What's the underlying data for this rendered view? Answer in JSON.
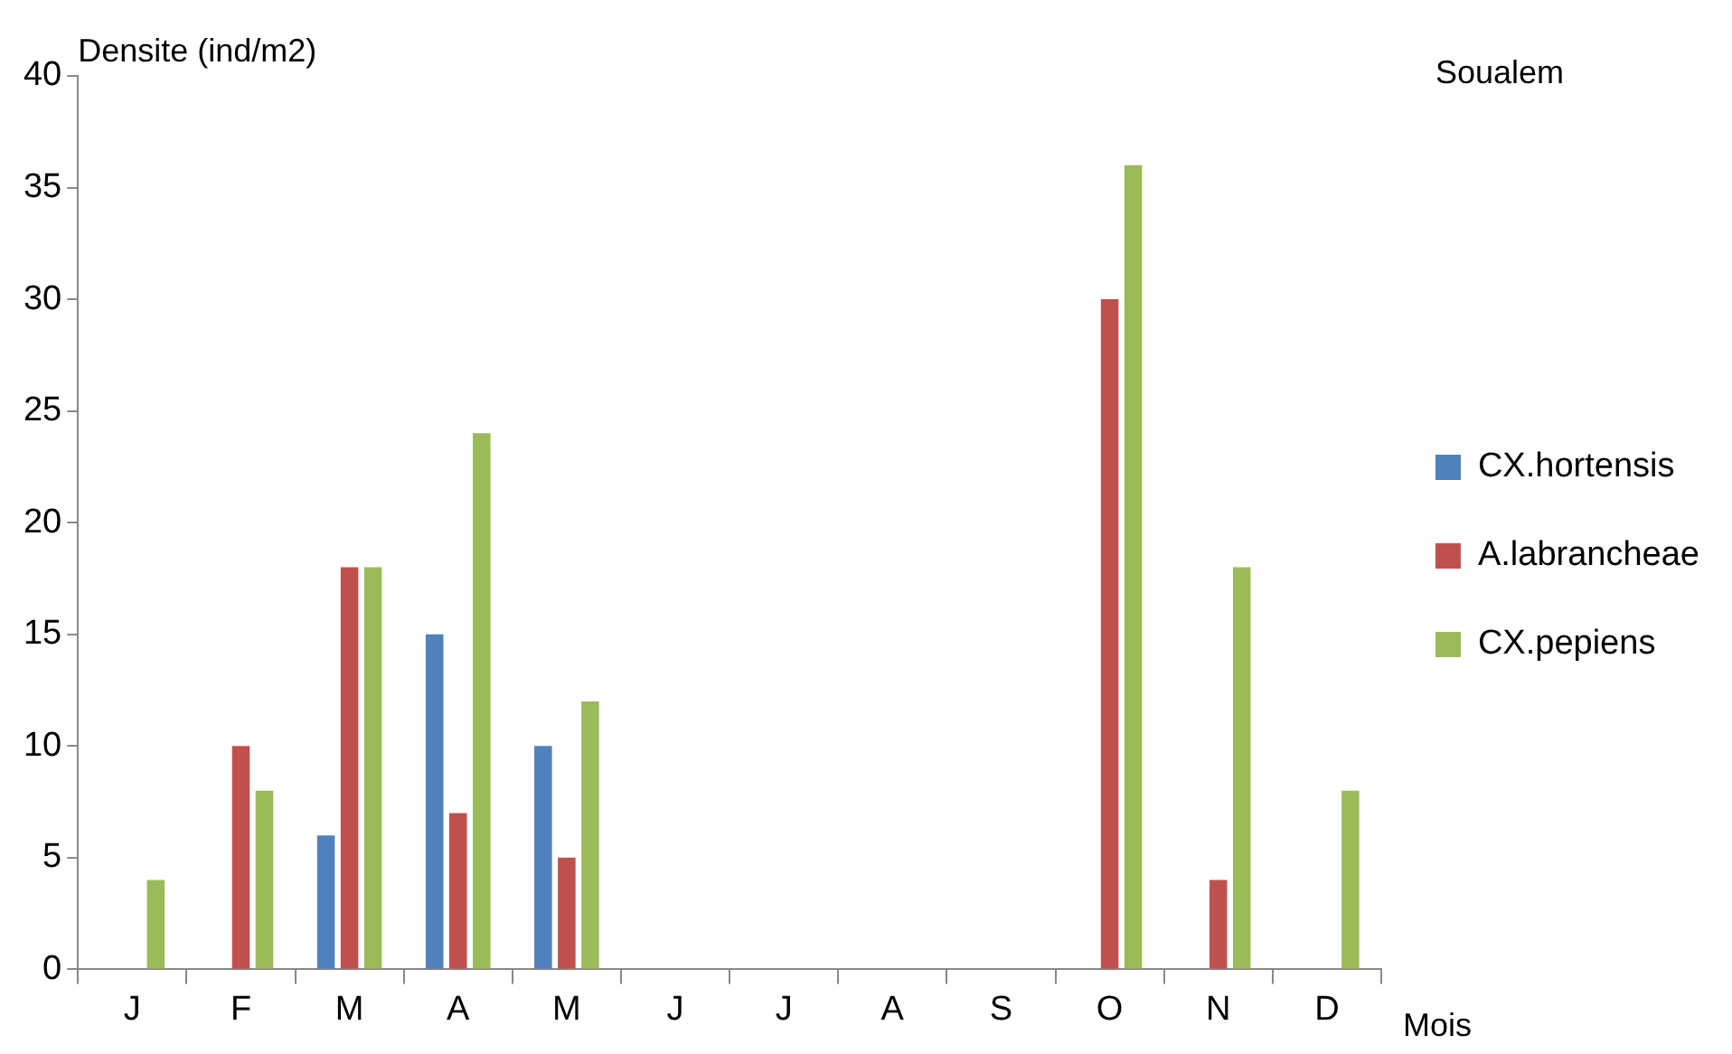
{
  "chart_data": {
    "type": "bar",
    "title": "Soualem",
    "ylabel": "Densite (ind/m2)",
    "xlabel": "Mois",
    "categories": [
      "J",
      "F",
      "M",
      "A",
      "M",
      "J",
      "J",
      "A",
      "S",
      "O",
      "N",
      "D"
    ],
    "series": [
      {
        "name": "CX.hortensis",
        "color": "#4f81bd",
        "values": [
          0,
          0,
          6,
          15,
          10,
          0,
          0,
          0,
          0,
          0,
          0,
          0
        ]
      },
      {
        "name": "A.labrancheae",
        "color": "#c0504d",
        "values": [
          0,
          10,
          18,
          7,
          5,
          0,
          0,
          0,
          0,
          30,
          4,
          0
        ]
      },
      {
        "name": "CX.pepiens",
        "color": "#9bbb59",
        "values": [
          4,
          8,
          18,
          24,
          12,
          0,
          0,
          0,
          0,
          36,
          18,
          8
        ]
      }
    ],
    "ylim": [
      0,
      40
    ],
    "yticks": [
      0,
      5,
      10,
      15,
      20,
      25,
      30,
      35,
      40
    ],
    "grid": false,
    "legend": "right"
  }
}
